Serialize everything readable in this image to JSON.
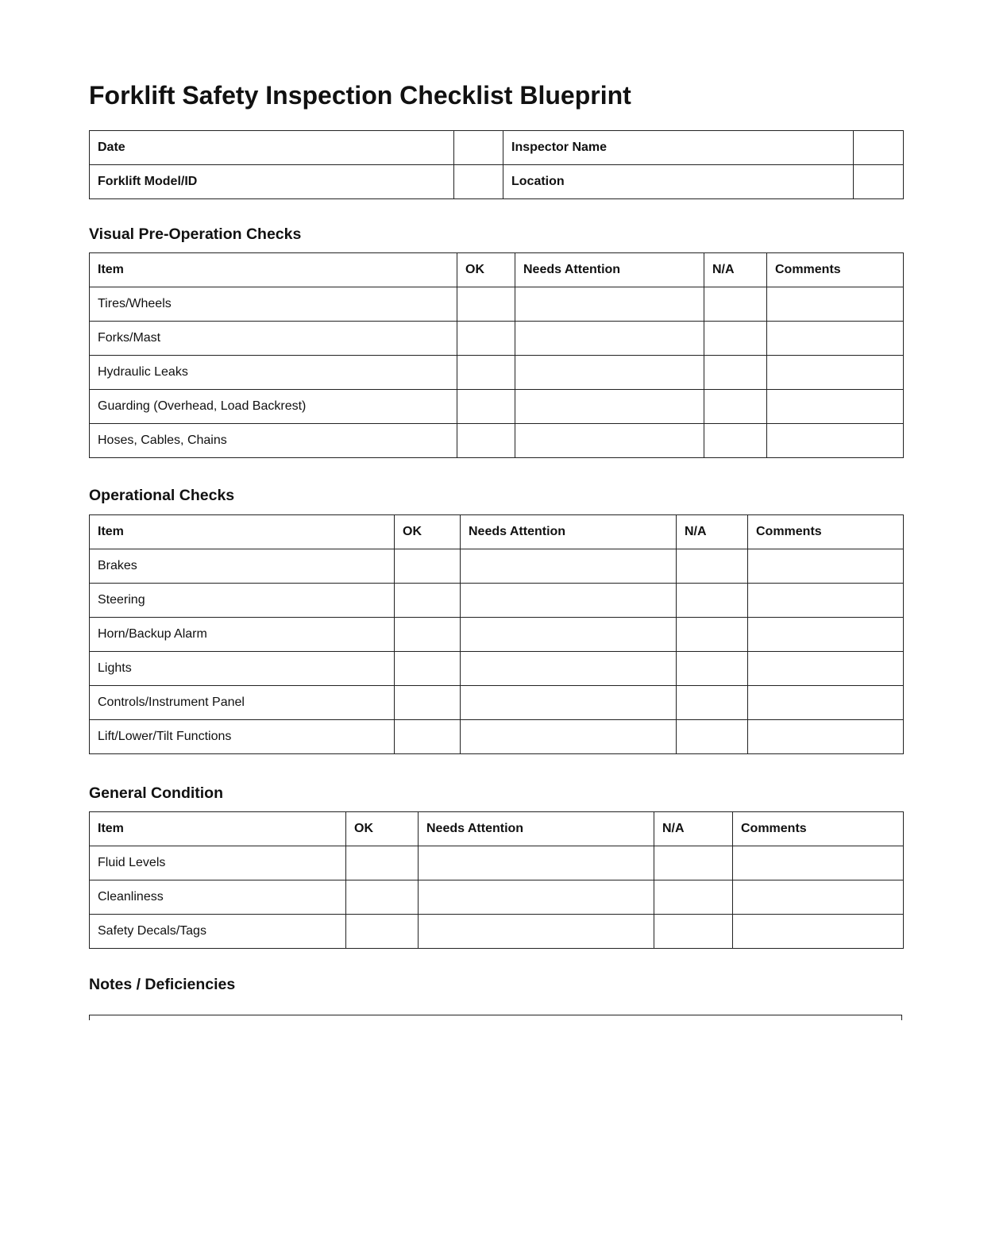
{
  "title": "Forklift Safety Inspection Checklist Blueprint",
  "info": {
    "rows": [
      {
        "label1": "Date",
        "value1": "",
        "label2": "Inspector Name",
        "value2": ""
      },
      {
        "label1": "Forklift Model/ID",
        "value1": "",
        "label2": "Location",
        "value2": ""
      }
    ]
  },
  "sections": [
    {
      "heading": "Visual Pre-Operation Checks",
      "columns": [
        "Item",
        "OK",
        "Needs Attention",
        "N/A",
        "Comments"
      ],
      "items": [
        "Tires/Wheels",
        "Forks/Mast",
        "Hydraulic Leaks",
        "Guarding (Overhead, Load Backrest)",
        "Hoses, Cables, Chains"
      ]
    },
    {
      "heading": "Operational Checks",
      "columns": [
        "Item",
        "OK",
        "Needs Attention",
        "N/A",
        "Comments"
      ],
      "items": [
        "Brakes",
        "Steering",
        "Horn/Backup Alarm",
        "Lights",
        "Controls/Instrument Panel",
        "Lift/Lower/Tilt Functions"
      ]
    },
    {
      "heading": "General Condition",
      "columns": [
        "Item",
        "OK",
        "Needs Attention",
        "N/A",
        "Comments"
      ],
      "items": [
        "Fluid Levels",
        "Cleanliness",
        "Safety Decals/Tags"
      ]
    }
  ],
  "notes": {
    "heading": "Notes / Deficiencies",
    "value": ""
  }
}
